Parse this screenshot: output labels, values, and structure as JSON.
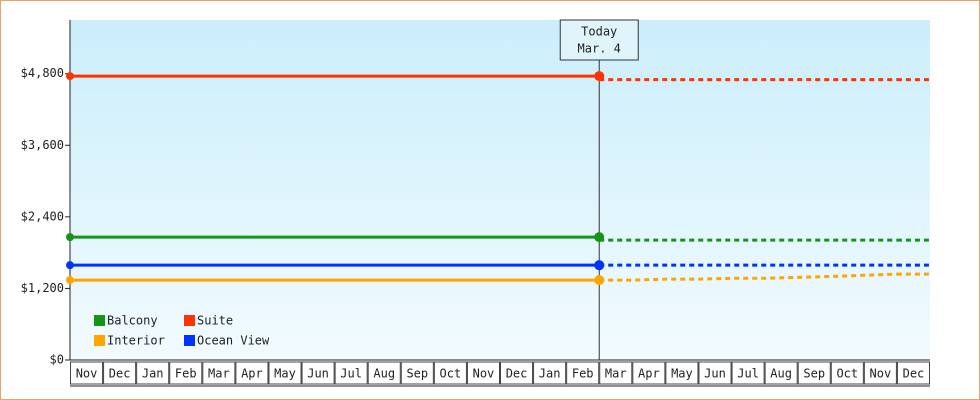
{
  "chart_data": {
    "type": "line",
    "categories": [
      "Nov",
      "Dec",
      "Jan",
      "Feb",
      "Mar",
      "Apr",
      "May",
      "Jun",
      "Jul",
      "Aug",
      "Sep",
      "Oct",
      "Nov",
      "Dec",
      "Jan",
      "Feb",
      "Mar",
      "Apr",
      "May",
      "Jun",
      "Jul",
      "Aug",
      "Sep",
      "Oct",
      "Nov",
      "Dec"
    ],
    "ylim": [
      0,
      5700
    ],
    "yticks": [
      {
        "value": 0,
        "label": "$0"
      },
      {
        "value": 1200,
        "label": "$1,200"
      },
      {
        "value": 2400,
        "label": "$2,400"
      },
      {
        "value": 3600,
        "label": "$3,600"
      },
      {
        "value": 4800,
        "label": "$4,800"
      }
    ],
    "today": {
      "label": "Today",
      "date": "Mar. 4"
    },
    "legend": "bottom-left",
    "series": [
      {
        "name": "Balcony",
        "color": "#149614",
        "values": [
          2060,
          2060,
          2060,
          2060,
          2060,
          2060,
          2060,
          2060,
          2060,
          2060,
          2060,
          2060,
          2060,
          2060,
          2060,
          2060,
          2060,
          null,
          null,
          null,
          null,
          null,
          null,
          null,
          null,
          null
        ],
        "forecast": [
          null,
          null,
          null,
          null,
          null,
          null,
          null,
          null,
          null,
          null,
          null,
          null,
          null,
          null,
          null,
          null,
          2010,
          2010,
          2010,
          2010,
          2010,
          2010,
          2010,
          2010,
          2010,
          2010
        ]
      },
      {
        "name": "Suite",
        "color": "#ff3300",
        "values": [
          4760,
          4760,
          4760,
          4760,
          4760,
          4760,
          4760,
          4760,
          4760,
          4760,
          4760,
          4760,
          4760,
          4760,
          4760,
          4760,
          4760,
          null,
          null,
          null,
          null,
          null,
          null,
          null,
          null,
          null
        ],
        "forecast": [
          null,
          null,
          null,
          null,
          null,
          null,
          null,
          null,
          null,
          null,
          null,
          null,
          null,
          null,
          null,
          null,
          4700,
          4700,
          4700,
          4700,
          4700,
          4700,
          4700,
          4700,
          4700,
          4700
        ]
      },
      {
        "name": "Interior",
        "color": "#ffa500",
        "values": [
          1340,
          1340,
          1340,
          1340,
          1340,
          1340,
          1340,
          1340,
          1340,
          1340,
          1340,
          1340,
          1340,
          1340,
          1340,
          1340,
          1340,
          null,
          null,
          null,
          null,
          null,
          null,
          null,
          null,
          null
        ],
        "forecast": [
          null,
          null,
          null,
          null,
          null,
          null,
          null,
          null,
          null,
          null,
          null,
          null,
          null,
          null,
          null,
          null,
          1340,
          1340,
          1355,
          1355,
          1370,
          1370,
          1385,
          1400,
          1420,
          1440
        ]
      },
      {
        "name": "Ocean View",
        "color": "#0033ff",
        "values": [
          1590,
          1590,
          1590,
          1590,
          1590,
          1590,
          1590,
          1590,
          1590,
          1590,
          1590,
          1590,
          1590,
          1590,
          1590,
          1590,
          1590,
          null,
          null,
          null,
          null,
          null,
          null,
          null,
          null,
          null
        ],
        "forecast": [
          null,
          null,
          null,
          null,
          null,
          null,
          null,
          null,
          null,
          null,
          null,
          null,
          null,
          null,
          null,
          null,
          1590,
          1590,
          1590,
          1590,
          1590,
          1590,
          1590,
          1590,
          1590,
          1590
        ]
      }
    ]
  }
}
